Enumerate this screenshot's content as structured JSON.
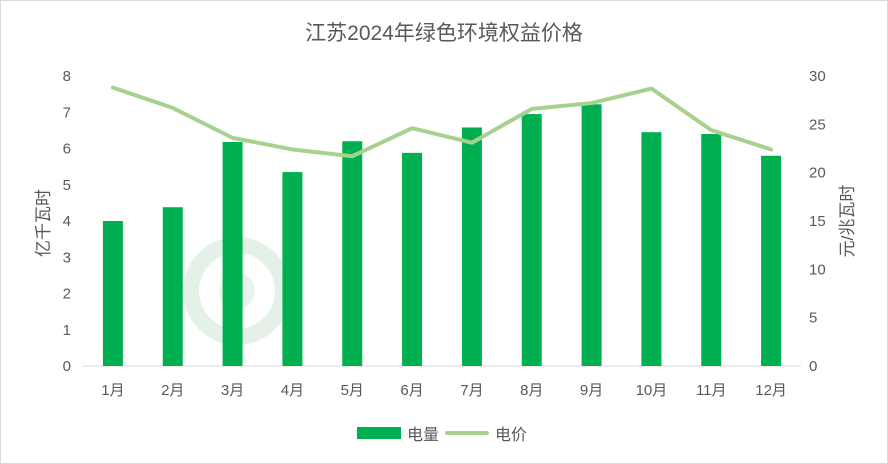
{
  "chart_data": {
    "type": "bar",
    "title": "江苏2024年绿色环境权益价格",
    "categories": [
      "1月",
      "2月",
      "3月",
      "4月",
      "5月",
      "6月",
      "7月",
      "8月",
      "9月",
      "10月",
      "11月",
      "12月"
    ],
    "series": [
      {
        "name": "电量",
        "type": "bar",
        "axis": "left",
        "values": [
          4.0,
          4.38,
          6.18,
          5.35,
          6.2,
          5.88,
          6.58,
          6.95,
          7.22,
          6.45,
          6.4,
          5.8
        ]
      },
      {
        "name": "电价",
        "type": "line",
        "axis": "right",
        "values": [
          28.8,
          26.7,
          23.6,
          22.4,
          21.7,
          24.6,
          23.1,
          26.6,
          27.2,
          28.7,
          24.4,
          22.4
        ]
      }
    ],
    "ylabel": "亿千瓦时",
    "ylim": [
      0,
      8
    ],
    "yticks": [
      0,
      1,
      2,
      3,
      4,
      5,
      6,
      7,
      8
    ],
    "y2label": "元/兆瓦时",
    "y2lim": [
      0,
      30
    ],
    "y2ticks": [
      0,
      5,
      10,
      15,
      20,
      25,
      30
    ],
    "grid": false,
    "legend": "bottom",
    "colors": {
      "bar": "#00b050",
      "line": "#a9d18e"
    }
  }
}
